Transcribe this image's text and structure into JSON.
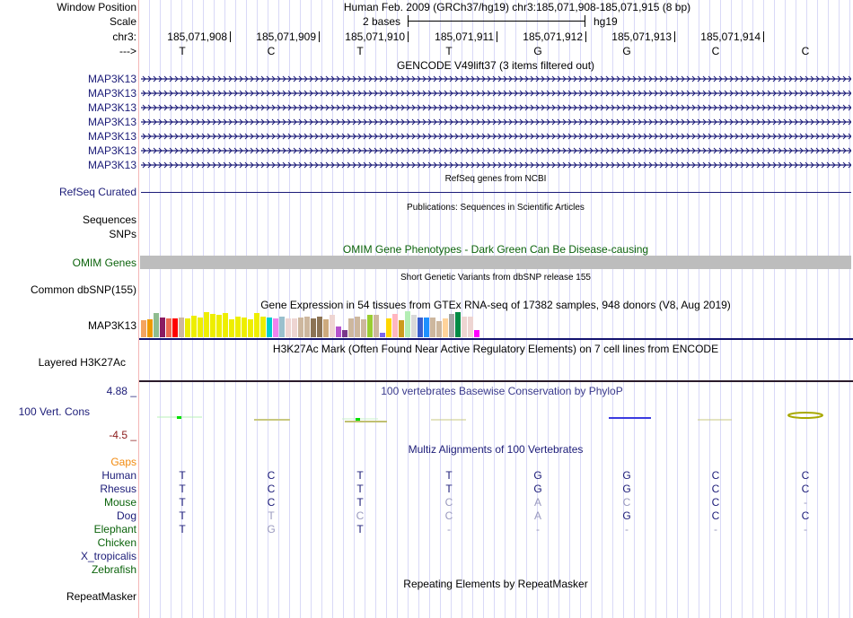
{
  "header": {
    "window_position_label": "Window Position",
    "assembly_title": "Human Feb. 2009 (GRCh37/hg19)   chr3:185,071,908-185,071,915 (8 bp)",
    "scale_label": "Scale",
    "scale_text": "2 bases",
    "scale_db": "hg19",
    "chrom_label": "chr3:",
    "strand_label": "--->",
    "positions": [
      "185,071,908",
      "185,071,909",
      "185,071,910",
      "185,071,911",
      "185,071,912",
      "185,071,913",
      "185,071,914"
    ],
    "bases": [
      "T",
      "C",
      "T",
      "T",
      "G",
      "G",
      "C",
      "C"
    ]
  },
  "gencode": {
    "title": "GENCODE V49lift37 (3 items filtered out)",
    "items": [
      "MAP3K13",
      "MAP3K13",
      "MAP3K13",
      "MAP3K13",
      "MAP3K13",
      "MAP3K13",
      "MAP3K13"
    ]
  },
  "refseq": {
    "title": "RefSeq genes from NCBI",
    "label": "RefSeq Curated"
  },
  "publications": {
    "title": "Publications: Sequences in Scientific Articles",
    "label1": "Sequences",
    "label2": "SNPs"
  },
  "omim": {
    "title": "OMIM Gene Phenotypes - Dark Green Can Be Disease-causing",
    "label": "OMIM Genes"
  },
  "dbsnp": {
    "title": "Short Genetic Variants from dbSNP release 155",
    "label": "Common dbSNP(155)"
  },
  "gtex": {
    "title": "Gene Expression in 54 tissues from GTEx RNA-seq of 17382 samples, 948 donors (V8, Aug 2019)",
    "label": "MAP3K13",
    "bars": [
      {
        "c": "#f4a460",
        "v": 19
      },
      {
        "c": "#ee9a00",
        "v": 20
      },
      {
        "c": "#8fbc8f",
        "v": 27
      },
      {
        "c": "#8b1c62",
        "v": 22
      },
      {
        "c": "#ee6a50",
        "v": 21
      },
      {
        "c": "#ff0000",
        "v": 21
      },
      {
        "c": "#cdb79e",
        "v": 22
      },
      {
        "c": "#eeee00",
        "v": 21
      },
      {
        "c": "#eeee00",
        "v": 24
      },
      {
        "c": "#eeee00",
        "v": 22
      },
      {
        "c": "#eeee00",
        "v": 28
      },
      {
        "c": "#eeee00",
        "v": 26
      },
      {
        "c": "#eeee00",
        "v": 25
      },
      {
        "c": "#eeee00",
        "v": 27
      },
      {
        "c": "#eeee00",
        "v": 20
      },
      {
        "c": "#eeee00",
        "v": 23
      },
      {
        "c": "#eeee00",
        "v": 22
      },
      {
        "c": "#eeee00",
        "v": 20
      },
      {
        "c": "#eeee00",
        "v": 27
      },
      {
        "c": "#eeee00",
        "v": 23
      },
      {
        "c": "#00cdcd",
        "v": 22
      },
      {
        "c": "#ee82ee",
        "v": 21
      },
      {
        "c": "#9ac0cd",
        "v": 23
      },
      {
        "c": "#eed5d2",
        "v": 21
      },
      {
        "c": "#eed5d2",
        "v": 21
      },
      {
        "c": "#cdb79e",
        "v": 22
      },
      {
        "c": "#cdb79e",
        "v": 23
      },
      {
        "c": "#8b7355",
        "v": 21
      },
      {
        "c": "#8b7355",
        "v": 23
      },
      {
        "c": "#cdaa7d",
        "v": 20
      },
      {
        "c": "#eed5d2",
        "v": 25
      },
      {
        "c": "#b452cd",
        "v": 12
      },
      {
        "c": "#7a378b",
        "v": 8
      },
      {
        "c": "#cdb79e",
        "v": 21
      },
      {
        "c": "#cdb79e",
        "v": 23
      },
      {
        "c": "#cdb79e",
        "v": 20
      },
      {
        "c": "#9acd32",
        "v": 25
      },
      {
        "c": "#cdb79e",
        "v": 25
      },
      {
        "c": "#7b68ee",
        "v": 5
      },
      {
        "c": "#ffd700",
        "v": 21
      },
      {
        "c": "#ffb6c1",
        "v": 26
      },
      {
        "c": "#cd9b1d",
        "v": 19
      },
      {
        "c": "#b4eeb4",
        "v": 29
      },
      {
        "c": "#d9d9d9",
        "v": 25
      },
      {
        "c": "#3a5fcd",
        "v": 22
      },
      {
        "c": "#1e90ff",
        "v": 22
      },
      {
        "c": "#cdb79e",
        "v": 22
      },
      {
        "c": "#cdb79e",
        "v": 18
      },
      {
        "c": "#ffd39b",
        "v": 21
      },
      {
        "c": "#a6a6a6",
        "v": 26
      },
      {
        "c": "#008b45",
        "v": 28
      },
      {
        "c": "#eed5d2",
        "v": 23
      },
      {
        "c": "#eed5d2",
        "v": 23
      },
      {
        "c": "#ff00ff",
        "v": 8
      }
    ]
  },
  "h3k27ac": {
    "title": "H3K27Ac Mark (Often Found Near Active Regulatory Elements) on 7 cell lines from ENCODE",
    "label": "Layered H3K27Ac"
  },
  "conservation": {
    "title": "100 vertebrates Basewise Conservation by PhyloP",
    "label": "100 Vert. Cons",
    "ymax": "4.88 _",
    "ymin": "-4.5 _"
  },
  "multiz": {
    "title": "Multiz Alignments of 100 Vertebrates",
    "gaps_label": "Gaps",
    "species": [
      {
        "name": "Human",
        "color": "navy",
        "bases": [
          "T",
          "C",
          "T",
          "T",
          "G",
          "G",
          "C",
          "C"
        ],
        "match": [
          1,
          1,
          1,
          1,
          1,
          1,
          1,
          1
        ]
      },
      {
        "name": "Rhesus",
        "color": "navy",
        "bases": [
          "T",
          "C",
          "T",
          "T",
          "G",
          "G",
          "C",
          "C"
        ],
        "match": [
          1,
          1,
          1,
          1,
          1,
          1,
          1,
          1
        ]
      },
      {
        "name": "Mouse",
        "color": "green",
        "bases": [
          "T",
          "C",
          "T",
          "C",
          "A",
          "C",
          "C",
          "-"
        ],
        "match": [
          1,
          1,
          1,
          0,
          0,
          0,
          1,
          0
        ]
      },
      {
        "name": "Dog",
        "color": "navy",
        "bases": [
          "T",
          "T",
          "C",
          "C",
          "A",
          "G",
          "C",
          "C"
        ],
        "match": [
          1,
          0,
          0,
          0,
          0,
          1,
          1,
          1
        ]
      },
      {
        "name": "Elephant",
        "color": "green",
        "bases": [
          "T",
          "G",
          "T",
          "-",
          "-",
          "-",
          "-",
          "-"
        ],
        "match": [
          1,
          0,
          1,
          0,
          0,
          0,
          0,
          0
        ]
      },
      {
        "name": "Chicken",
        "color": "green",
        "bases": [],
        "match": []
      },
      {
        "name": "X_tropicalis",
        "color": "navy",
        "bases": [],
        "match": []
      },
      {
        "name": "Zebrafish",
        "color": "green",
        "bases": [],
        "match": []
      }
    ]
  },
  "repeatmasker": {
    "title": "Repeating Elements by RepeatMasker",
    "label": "RepeatMasker"
  }
}
